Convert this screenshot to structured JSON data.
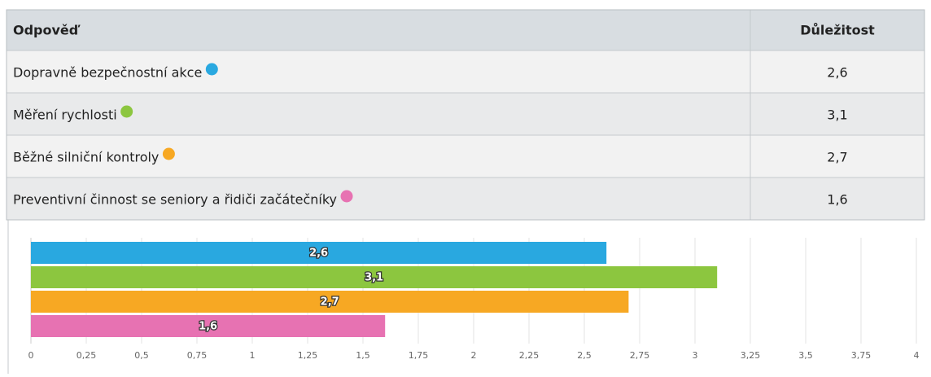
{
  "table": {
    "header": [
      "Odpověď",
      "Důležitost"
    ],
    "rows": [
      [
        "Dopravně bezpečnostní akce",
        "2,6"
      ],
      [
        "Měření rychlosti",
        "3,1"
      ],
      [
        "Běžné silniční kontroly",
        "2,7"
      ],
      [
        "Preventivní činnost se seniory a řidiči začátečníky",
        "1,6"
      ]
    ]
  },
  "chart_data": {
    "type": "bar",
    "orientation": "horizontal",
    "values": [
      2.6,
      3.1,
      2.7,
      1.6
    ],
    "value_labels": [
      "2,6",
      "3,1",
      "2,7",
      "1,6"
    ],
    "colors": [
      "#29a8e0",
      "#8cc63f",
      "#f7a823",
      "#e772b2"
    ],
    "xlim": [
      0,
      4
    ],
    "xticks": [
      0,
      {
        "value": 0.25,
        "label": "0,25"
      },
      {
        "value": 0.5,
        "label": "0,5"
      },
      {
        "value": 0.75,
        "label": "0,75"
      },
      1,
      {
        "value": 1.25,
        "label": "1,25"
      },
      {
        "value": 1.5,
        "label": "1,5"
      },
      {
        "value": 1.75,
        "label": "1,75"
      },
      2,
      {
        "value": 2.25,
        "label": "2,25"
      },
      {
        "value": 2.5,
        "label": "2,5"
      },
      {
        "value": 2.75,
        "label": "2,75"
      },
      3,
      {
        "value": 3.25,
        "label": "3,25"
      },
      {
        "value": 3.5,
        "label": "3,5"
      },
      {
        "value": 3.75,
        "label": "3,75"
      },
      4
    ],
    "grid": true
  }
}
